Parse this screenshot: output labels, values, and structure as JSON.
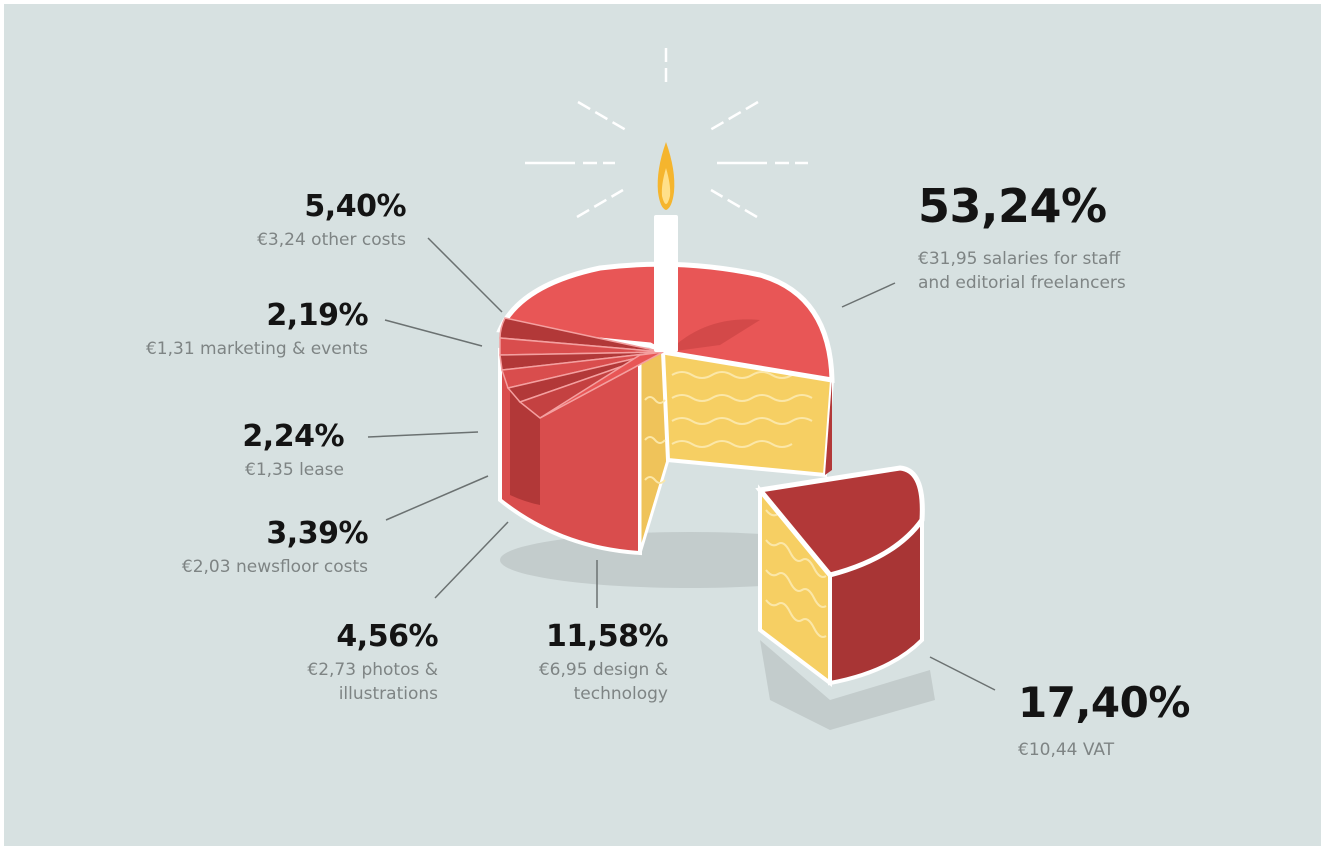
{
  "chart_data": {
    "type": "pie",
    "title": "",
    "slices": [
      {
        "label": "salaries for staff and editorial freelancers",
        "percent": 53.24,
        "amount_eur": 31.95
      },
      {
        "label": "VAT",
        "percent": 17.4,
        "amount_eur": 10.44
      },
      {
        "label": "design & technology",
        "percent": 11.58,
        "amount_eur": 6.95
      },
      {
        "label": "other costs",
        "percent": 5.4,
        "amount_eur": 3.24
      },
      {
        "label": "photos & illustrations",
        "percent": 4.56,
        "amount_eur": 2.73
      },
      {
        "label": "newsfloor costs",
        "percent": 3.39,
        "amount_eur": 2.03
      },
      {
        "label": "lease",
        "percent": 2.24,
        "amount_eur": 1.35
      },
      {
        "label": "marketing & events",
        "percent": 2.19,
        "amount_eur": 1.31
      }
    ],
    "labels": [
      {
        "percent": "5,40%",
        "text": "€3,24 other costs"
      },
      {
        "percent": "2,19%",
        "text": "€1,31 marketing & events"
      },
      {
        "percent": "2,24%",
        "text": "€1,35 lease"
      },
      {
        "percent": "3,39%",
        "text": "€2,03 newsfloor costs"
      },
      {
        "percent": "4,56%",
        "lines": [
          "€2,73 photos &",
          "illustrations"
        ]
      },
      {
        "percent": "11,58%",
        "lines": [
          "€6,95 design &",
          "technology"
        ]
      },
      {
        "percent": "53,24%",
        "lines": [
          "€31,95 salaries for staff",
          "and editorial freelancers"
        ]
      },
      {
        "percent": "17,40%",
        "text": "€10,44 VAT"
      }
    ],
    "colors": {
      "background": "#d7e1e1",
      "cake_red": "#e85656",
      "cake_dark_red": "#b23838",
      "sponge": "#f6cf63",
      "flame": "#f5b52e"
    }
  }
}
